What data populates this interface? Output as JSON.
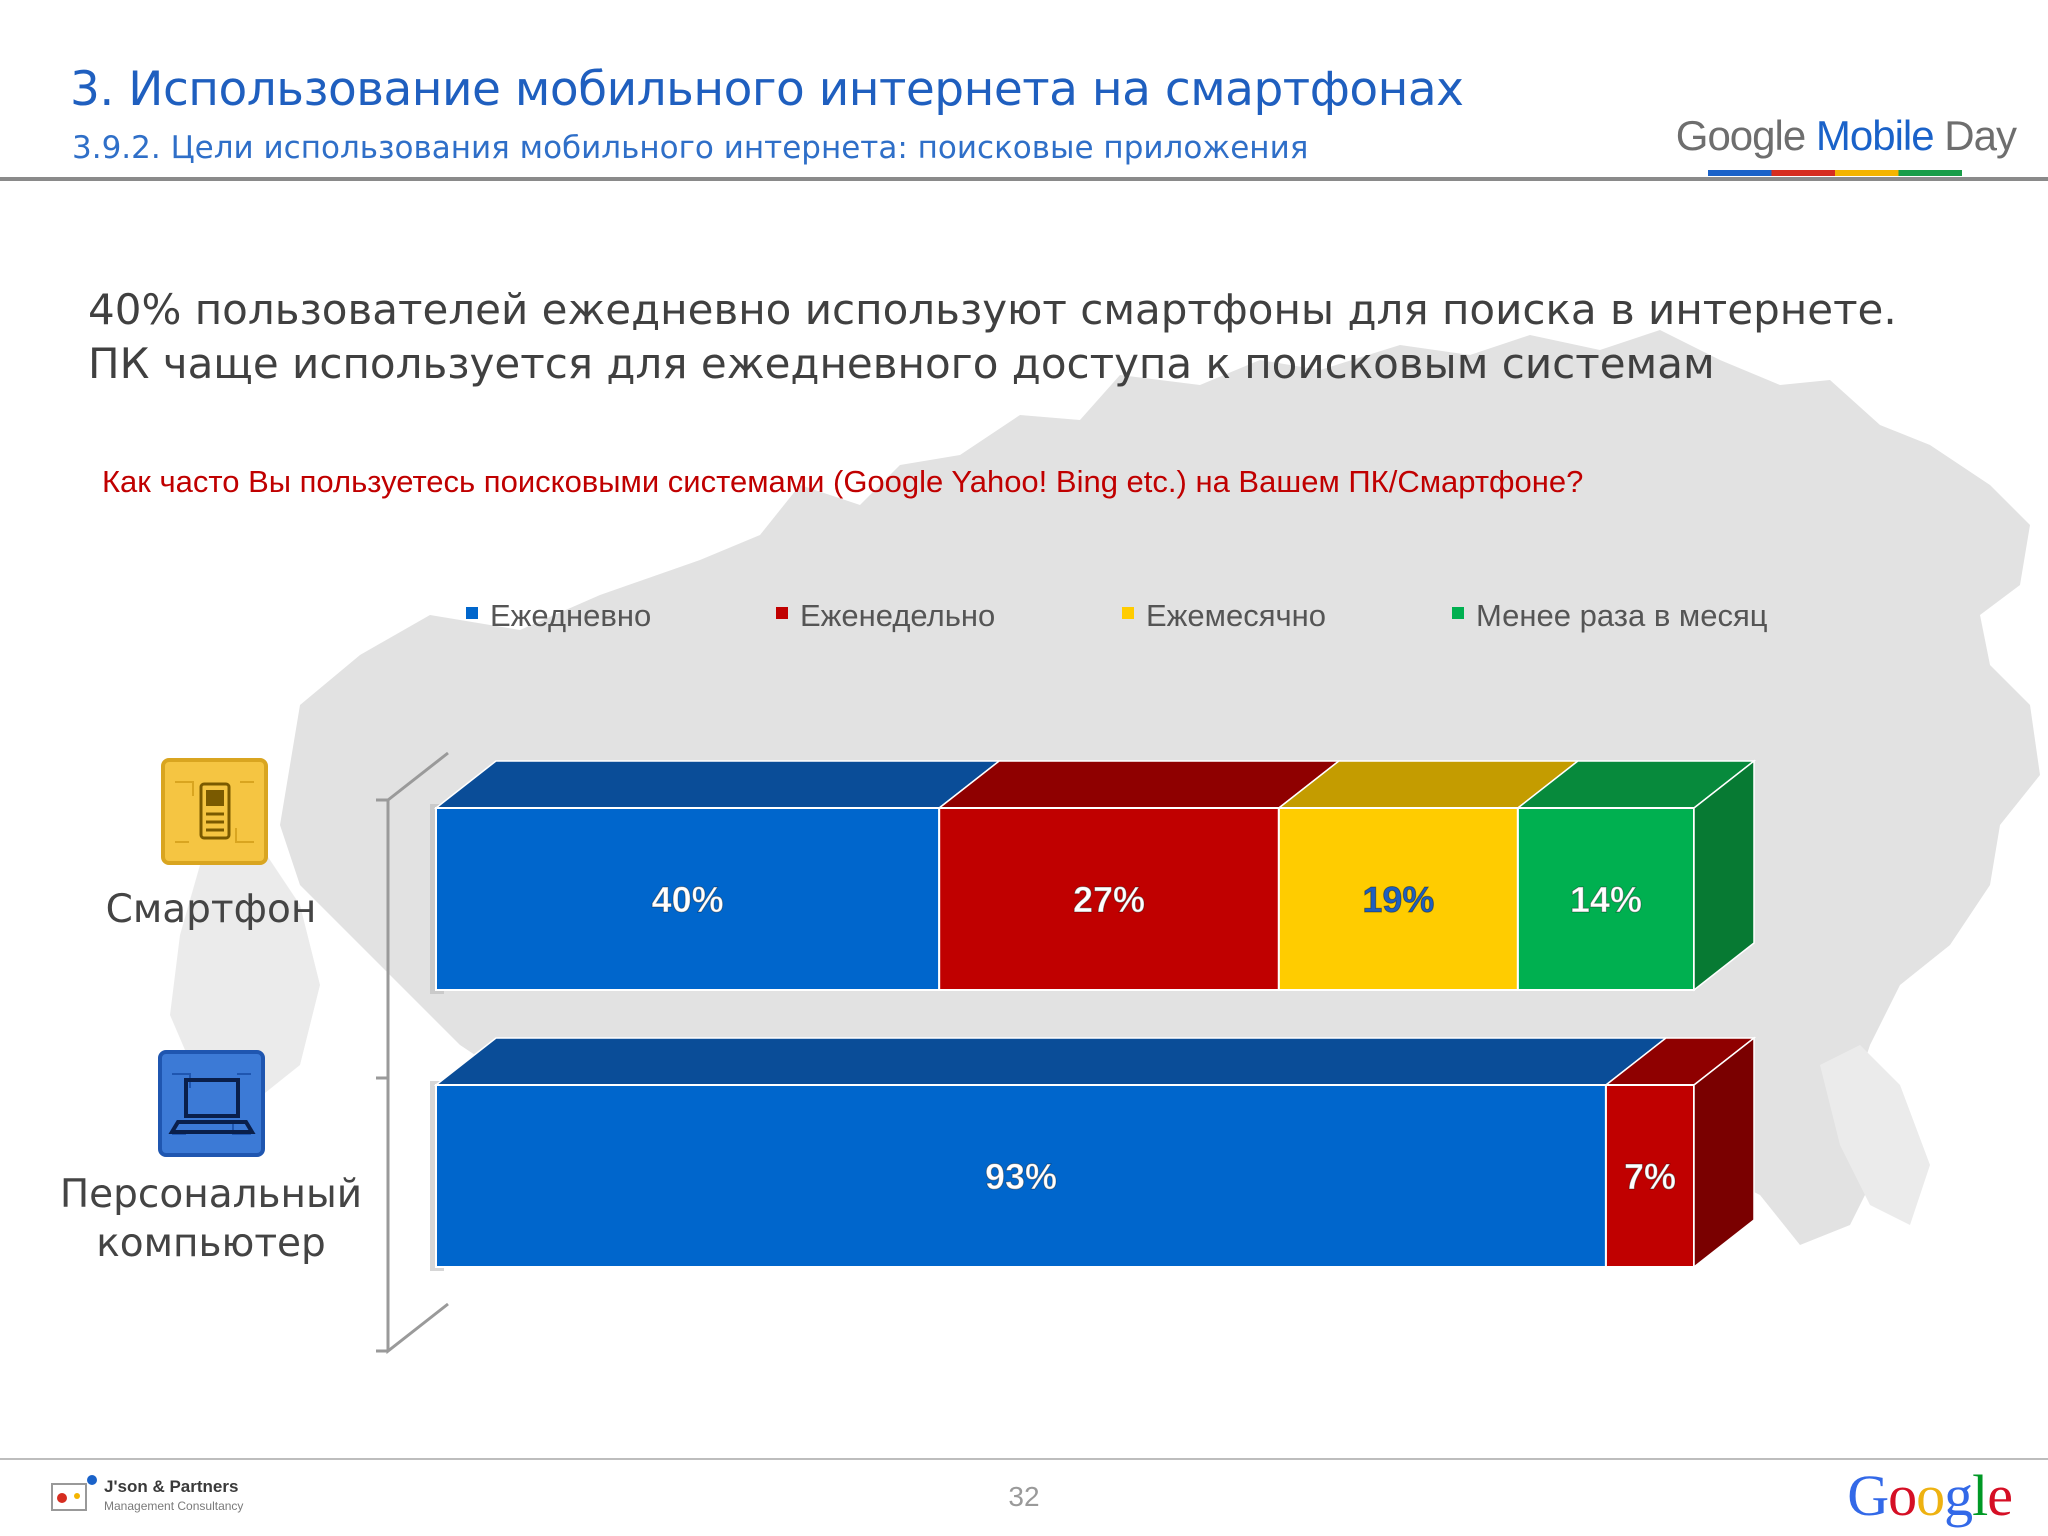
{
  "header": {
    "title": "3. Использование мобильного интернета на смартфонах",
    "subtitle": "3.9.2. Цели использования мобильного интернета: поисковые приложения",
    "event_logo": {
      "part1": "Google",
      "part2": "Mobile",
      "part3": "Day"
    }
  },
  "headline": {
    "line1": "40% пользователей ежедневно используют смартфоны для поиска в интернете.",
    "line2": "ПК чаще используется для ежедневного доступа к поисковым системам"
  },
  "question": "Как часто Вы пользуетесь поисковыми системами  (Google Yahoo! Bing etc.) на Вашем ПК/Смартфоне?",
  "icons": {
    "smartphone": "smartphone-icon",
    "pc": "laptop-icon"
  },
  "chart_data": {
    "type": "bar",
    "orientation": "horizontal",
    "stacked": true,
    "percent": true,
    "legend_position": "top",
    "categories": [
      "Смартфон",
      "Персональный компьютер"
    ],
    "category_lines": [
      [
        "Смартфон"
      ],
      [
        "Персональный",
        "компьютер"
      ]
    ],
    "series": [
      {
        "name": "Ежедневно",
        "values": [
          40,
          93
        ],
        "color": "#0066cc",
        "top": "#0a4d98",
        "side": "#063e7d",
        "label_color": "#ffffff"
      },
      {
        "name": "Еженедельно",
        "values": [
          27,
          7
        ],
        "color": "#c00000",
        "top": "#8f0000",
        "side": "#7a0000",
        "label_color": "#ffffff"
      },
      {
        "name": "Ежемесячно",
        "values": [
          19,
          0
        ],
        "color": "#ffcc00",
        "top": "#c49c00",
        "side": "#a88500",
        "label_color": "#1f5fbf"
      },
      {
        "name": "Менее раза в месяц",
        "values": [
          14,
          0
        ],
        "color": "#00b050",
        "top": "#078a3c",
        "side": "#077a33",
        "label_color": "#ffffff"
      }
    ],
    "data_labels": [
      [
        "40%",
        "27%",
        "19%",
        "14%"
      ],
      [
        "93%",
        "7%",
        "",
        ""
      ]
    ],
    "xlim": [
      0,
      100
    ]
  },
  "footer": {
    "company": "J'son & Partners",
    "company_sub": "Management Consultancy",
    "page_number": "32",
    "google_letters": [
      "G",
      "o",
      "o",
      "g",
      "l",
      "e"
    ]
  }
}
